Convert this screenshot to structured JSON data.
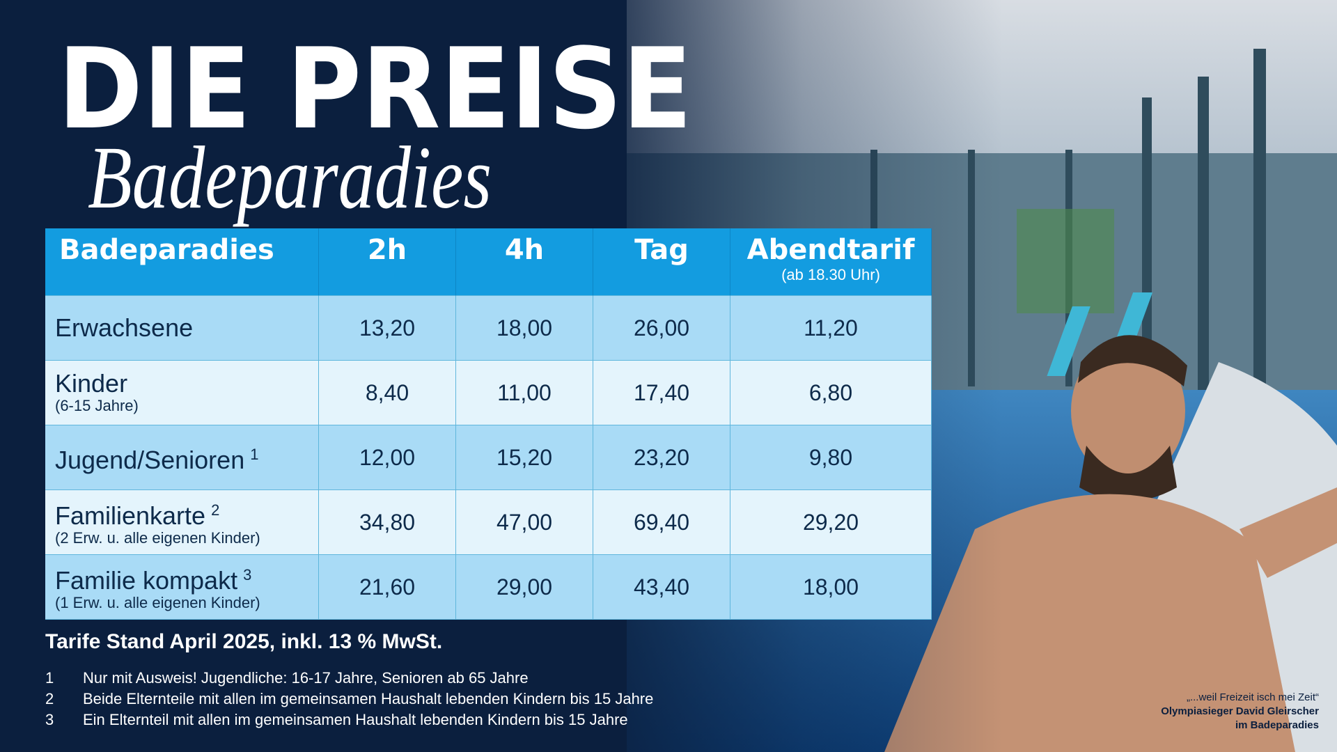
{
  "header": {
    "title": "DIE PREISE",
    "subtitle": "Badeparadies"
  },
  "table": {
    "header": [
      {
        "label": "Badeparadies"
      },
      {
        "label": "2h"
      },
      {
        "label": "4h"
      },
      {
        "label": "Tag"
      },
      {
        "label": "Abendtarif",
        "note": "(ab 18.30 Uhr)"
      }
    ],
    "rows": [
      {
        "label": "Erwachsene",
        "prices": [
          "13,20",
          "18,00",
          "26,00",
          "11,20"
        ]
      },
      {
        "label": "Kinder",
        "note": "(6-15 Jahre)",
        "prices": [
          "8,40",
          "11,00",
          "17,40",
          "6,80"
        ]
      },
      {
        "label": "Jugend/Senioren",
        "sup": "1",
        "prices": [
          "12,00",
          "15,20",
          "23,20",
          "9,80"
        ]
      },
      {
        "label": "Familienkarte",
        "sup": "2",
        "note": "(2 Erw. u. alle eigenen Kinder)",
        "prices": [
          "34,80",
          "47,00",
          "69,40",
          "29,20"
        ]
      },
      {
        "label": "Familie kompakt",
        "sup": "3",
        "note": "(1 Erw. u. alle eigenen Kinder)",
        "prices": [
          "21,60",
          "29,00",
          "43,40",
          "18,00"
        ]
      }
    ]
  },
  "tariff_note": "Tarife Stand April 2025, inkl. 13 % MwSt.",
  "footnotes": [
    {
      "marker": "1",
      "text": "Nur mit Ausweis! Jugendliche: 16-17 Jahre, Senioren ab 65 Jahre"
    },
    {
      "marker": "2",
      "text": "Beide Elternteile mit allen im gemeinsamen Haushalt lebenden Kindern bis 15 Jahre"
    },
    {
      "marker": "3",
      "text": "Ein Elternteil mit allen im gemeinsamen Haushalt lebenden Kindern bis 15 Jahre"
    }
  ],
  "photo_caption": {
    "quote": "„...weil Freizeit isch mei Zeit“",
    "line1": "Olympiasieger David Gleirscher",
    "line2": "im Badeparadies"
  }
}
